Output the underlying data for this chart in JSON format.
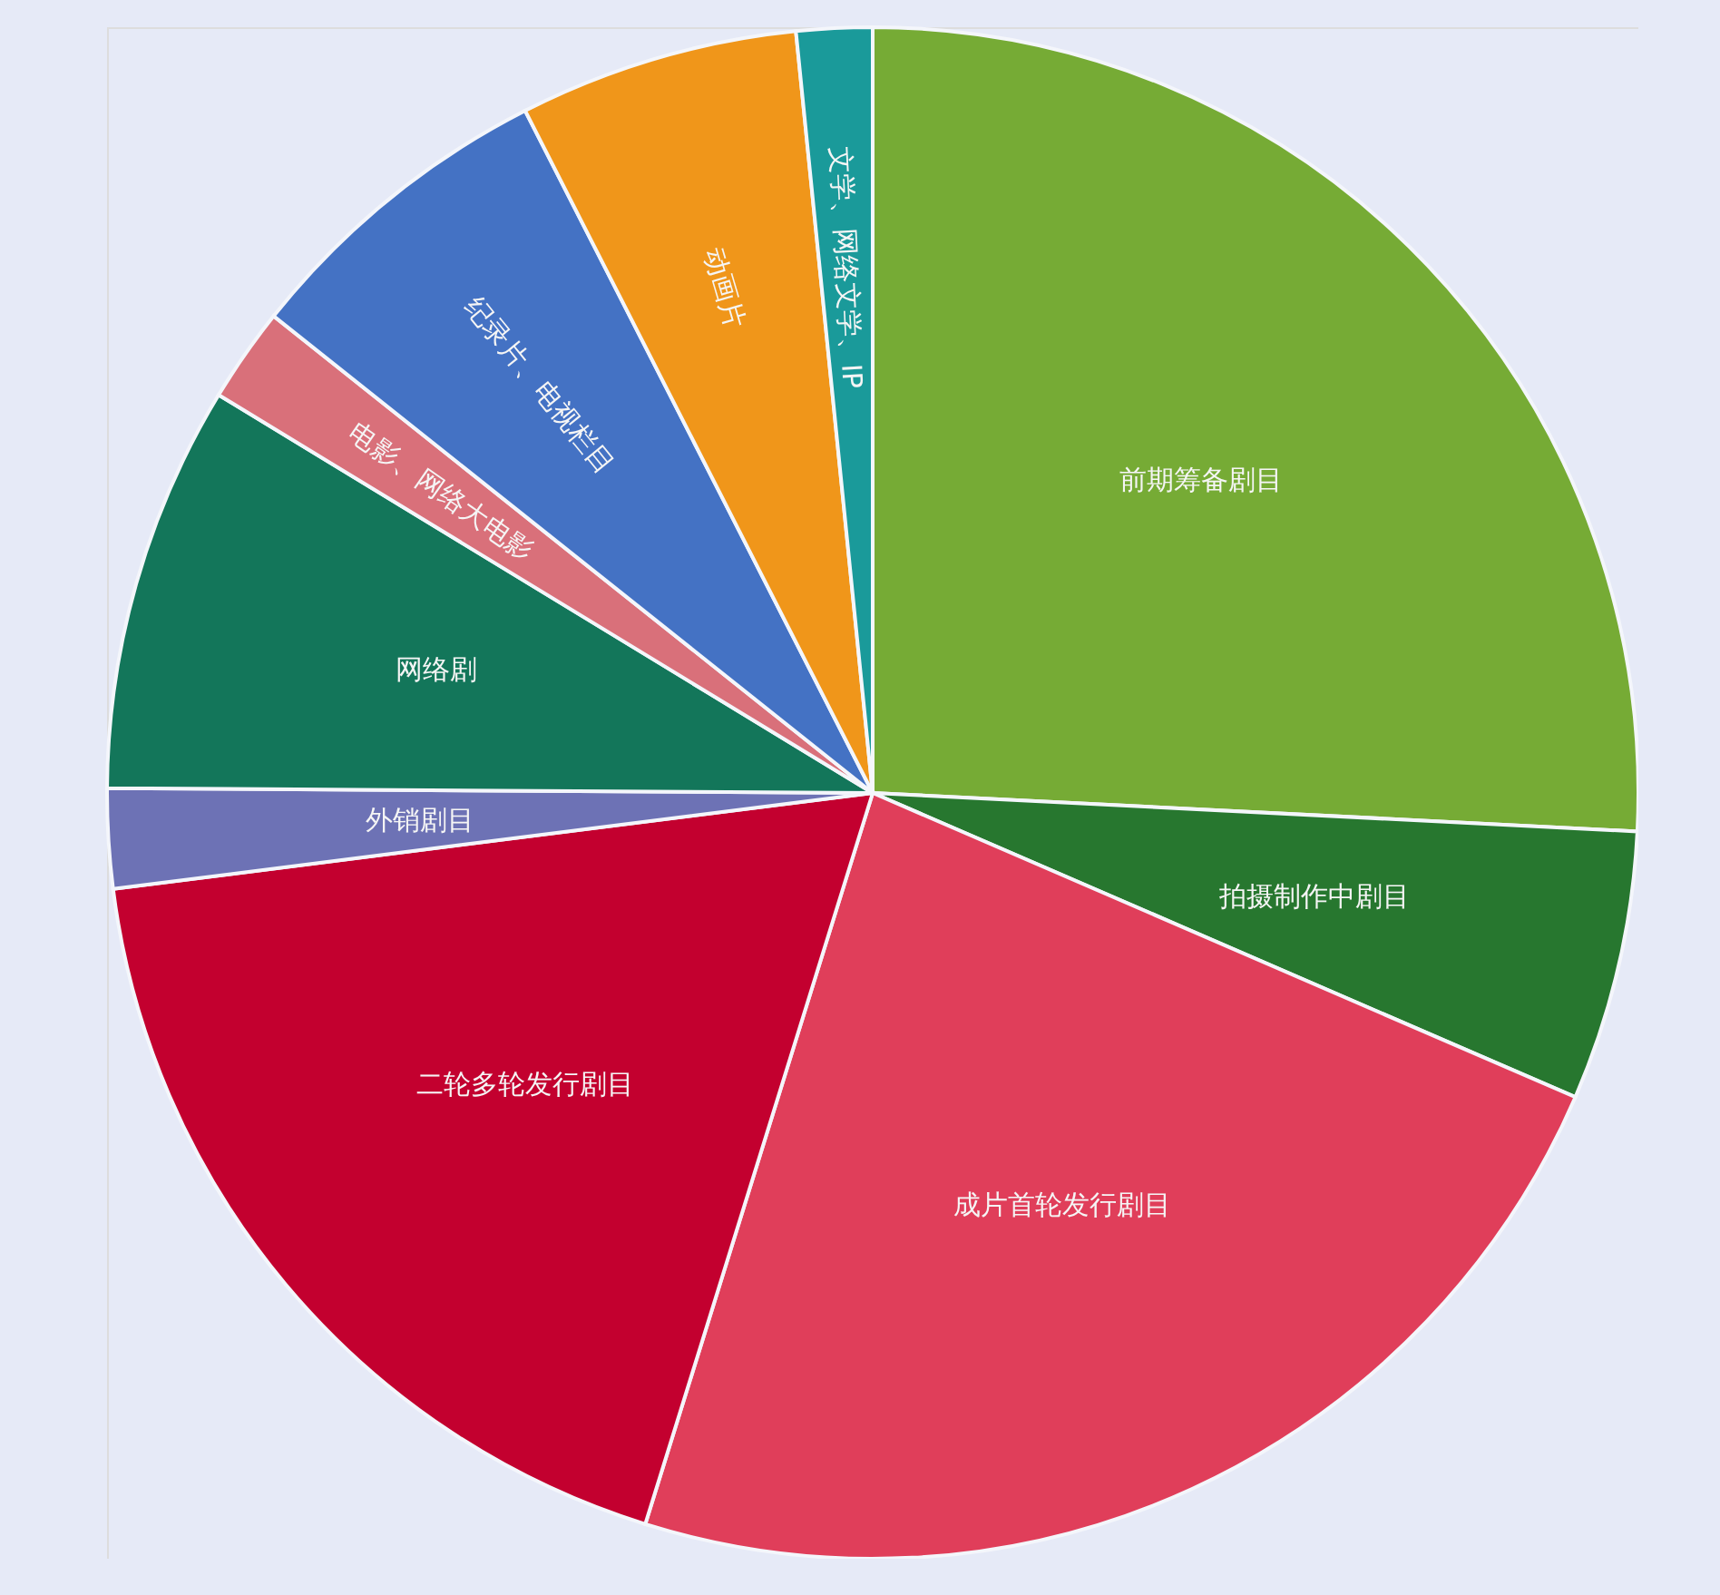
{
  "chart_data": {
    "type": "pie",
    "categories": [
      "前期筹备剧目",
      "拍摄制作中剧目",
      "成片首轮发行剧目",
      "二轮多轮发行剧目",
      "外销剧目",
      "网络剧",
      "电影、网络大电影",
      "纪录片、电视栏目",
      "动画片",
      "文学、网络文学、IP"
    ],
    "values": [
      25.8,
      5.7,
      23.3,
      18.2,
      2.1,
      8.6,
      2.0,
      6.8,
      5.9,
      1.6
    ],
    "colors": [
      "#76ab35",
      "#27772f",
      "#e03e5a",
      "#c3002f",
      "#6d72b5",
      "#13765a",
      "#d9707a",
      "#4472c4",
      "#f0961a",
      "#1a9a9a"
    ]
  }
}
